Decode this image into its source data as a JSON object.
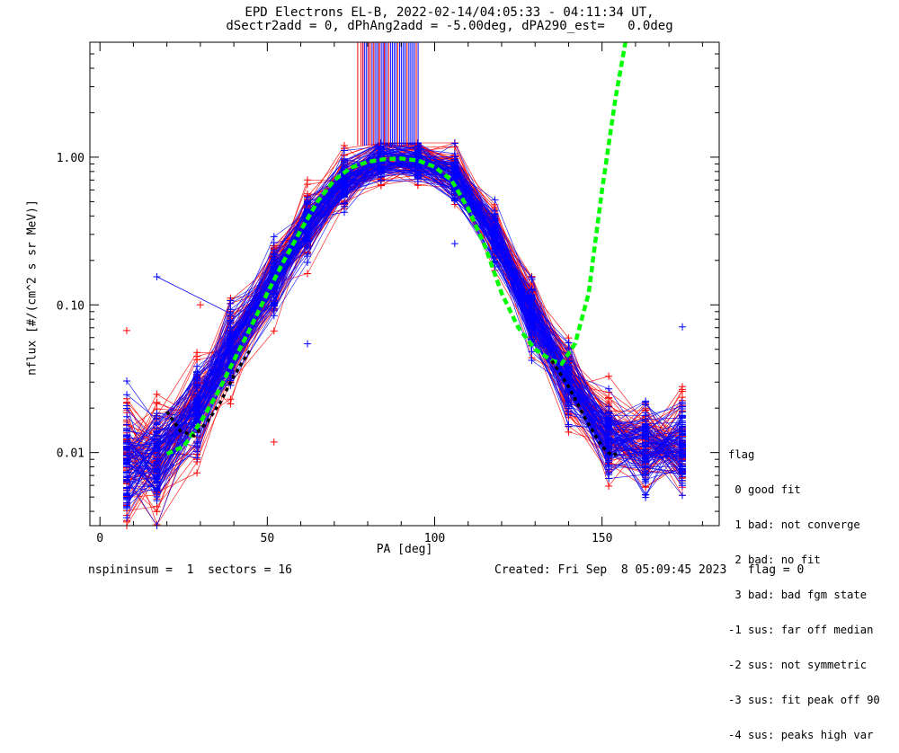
{
  "title_line1": "EPD Electrons EL-B, 2022-02-14/04:05:33 - 04:11:34 UT,",
  "title_line2": "dSectr2add = 0, dPhAng2add = -5.00deg, dPA290_est=   0.0deg",
  "footer": {
    "left": "nspininsum =  1  sectors = 16",
    "right": "Created: Fri Sep  8 05:09:45 2023   flag = 0"
  },
  "legend": {
    "title": "flag",
    "items": [
      " 0 good fit",
      " 1 bad: not converge",
      " 2 bad: no fit",
      " 3 bad: bad fgm state",
      "-1 sus: far off median",
      "-2 sus: not symmetric",
      "-3 sus: fit peak off 90",
      "-4 sus: peaks high var"
    ]
  },
  "colors": {
    "red": "#ff0000",
    "blue": "#0000ff",
    "fit_green": "#00ff00",
    "fit_black": "#000000"
  },
  "chart_data": {
    "type": "line",
    "title": "EPD Electrons EL-B, 2022-02-14/04:05:33 - 04:11:34 UT,",
    "subtitle": "dSectr2add = 0, dPhAng2add = -5.00deg, dPA290_est=   0.0deg",
    "xlabel": "PA [deg]",
    "ylabel": "nflux [#/(cm^2 s sr MeV)]",
    "xlim": [
      -3,
      185
    ],
    "ylim": [
      0.0032,
      6.0
    ],
    "yscale": "log",
    "xticks": [
      0,
      50,
      100,
      150
    ],
    "yticks": [
      0.01,
      0.1,
      1.0
    ],
    "ytick_labels": [
      "0.01",
      "0.10",
      "1.00"
    ],
    "median_profile": {
      "x": [
        8,
        17,
        29,
        39,
        52,
        62,
        73,
        84,
        95,
        106,
        118,
        129,
        140,
        152,
        163,
        174
      ],
      "y": [
        0.0085,
        0.009,
        0.02,
        0.05,
        0.15,
        0.35,
        0.7,
        0.95,
        0.95,
        0.75,
        0.3,
        0.09,
        0.03,
        0.013,
        0.011,
        0.011
      ]
    },
    "fit_green": {
      "x": [
        20,
        25,
        30,
        35,
        40,
        45,
        50,
        55,
        60,
        65,
        70,
        75,
        80,
        85,
        90,
        95,
        100,
        105,
        110,
        115,
        120,
        125,
        130,
        135,
        138,
        142,
        146,
        150,
        154,
        157
      ],
      "y": [
        0.0098,
        0.011,
        0.016,
        0.025,
        0.042,
        0.07,
        0.12,
        0.2,
        0.32,
        0.5,
        0.7,
        0.85,
        0.93,
        0.97,
        0.98,
        0.95,
        0.86,
        0.7,
        0.45,
        0.25,
        0.12,
        0.07,
        0.05,
        0.042,
        0.04,
        0.055,
        0.12,
        0.6,
        2.5,
        6.0
      ]
    },
    "fit_black": {
      "x": [
        20,
        24,
        28,
        32,
        36,
        40,
        45,
        135,
        140,
        145,
        150,
        153,
        155
      ],
      "y": [
        0.019,
        0.014,
        0.013,
        0.016,
        0.022,
        0.033,
        0.05,
        0.042,
        0.028,
        0.017,
        0.011,
        0.0095,
        0.01
      ]
    },
    "outlier_points": [
      {
        "x": 8,
        "y": 0.067,
        "series": "red"
      },
      {
        "x": 17,
        "y": 0.155,
        "series": "blue"
      },
      {
        "x": 30,
        "y": 0.1,
        "series": "red"
      },
      {
        "x": 52,
        "y": 0.0118,
        "series": "red"
      },
      {
        "x": 62,
        "y": 0.0545,
        "series": "blue"
      },
      {
        "x": 106,
        "y": 0.26,
        "series": "blue"
      },
      {
        "x": 174,
        "y": 0.071,
        "series": "blue"
      }
    ]
  }
}
